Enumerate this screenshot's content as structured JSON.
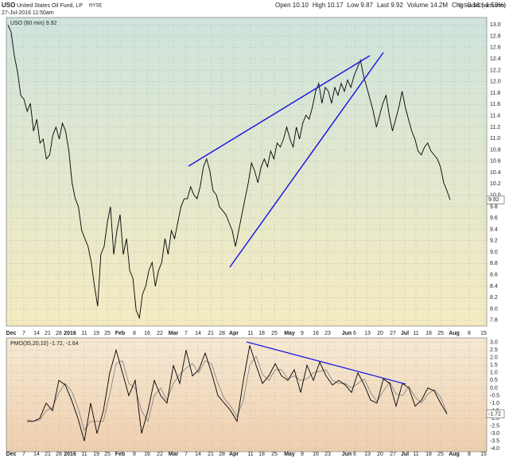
{
  "header": {
    "symbol": "USO",
    "name": "United States Oil Fund, LP",
    "exchange": "NYSE",
    "datetime": "27-Jul-2016 11:50am",
    "quote": [
      "Open 10.10",
      "High 10.17",
      "Low 9.87",
      "Last 9.92",
      "Volume 14.2M",
      "Chg -0.16 (-1.59%)"
    ],
    "source": "© StockCharts.com"
  },
  "chart_data": [
    {
      "type": "line",
      "legend": "USO (60 min) 9.92",
      "last_label": "9.92",
      "xtick_labels": [
        "Dec",
        "7",
        "14",
        "21",
        "28",
        "2016",
        "11",
        "19",
        "25",
        "Feb",
        "8",
        "16",
        "22",
        "Mar",
        "7",
        "14",
        "21",
        "28",
        "Apr",
        "11",
        "18",
        "25",
        "May",
        "9",
        "16",
        "23",
        "Jun",
        "6",
        "13",
        "20",
        "27",
        "Jul",
        "11",
        "18",
        "25",
        "Aug",
        "8",
        "15"
      ],
      "series": [
        {
          "name": "USO",
          "color": "#000000",
          "values": [
            13.0,
            12.87,
            12.45,
            12.17,
            11.76,
            11.69,
            11.48,
            11.62,
            11.13,
            11.34,
            10.92,
            10.99,
            10.64,
            10.71,
            11.06,
            11.2,
            10.99,
            11.27,
            11.13,
            10.78,
            10.22,
            9.94,
            9.8,
            9.38,
            9.24,
            9.1,
            8.82,
            8.4,
            8.05,
            8.96,
            9.1,
            9.52,
            9.8,
            8.96,
            9.38,
            9.66,
            8.96,
            9.24,
            8.68,
            8.54,
            7.98,
            7.84,
            8.26,
            8.4,
            8.68,
            8.82,
            8.4,
            8.68,
            8.82,
            9.24,
            8.96,
            9.38,
            9.24,
            9.52,
            9.8,
            9.94,
            9.94,
            10.15,
            10.01,
            9.94,
            10.15,
            10.5,
            10.64,
            10.43,
            10.08,
            10.01,
            9.8,
            9.73,
            9.66,
            9.52,
            9.38,
            9.1,
            9.38,
            9.66,
            9.94,
            10.22,
            10.57,
            10.43,
            10.22,
            10.5,
            10.64,
            10.5,
            10.78,
            10.64,
            10.92,
            10.85,
            10.99,
            11.2,
            10.99,
            10.85,
            11.2,
            10.99,
            11.27,
            11.41,
            11.34,
            11.55,
            11.83,
            11.97,
            11.62,
            11.9,
            11.83,
            11.62,
            11.9,
            11.76,
            11.97,
            11.83,
            12.03,
            11.9,
            12.1,
            12.24,
            12.38,
            12.1,
            11.9,
            11.69,
            11.48,
            11.2,
            11.41,
            11.62,
            11.76,
            11.41,
            11.13,
            11.34,
            11.55,
            11.83,
            11.55,
            11.34,
            11.13,
            10.99,
            10.78,
            10.71,
            10.85,
            10.92,
            10.78,
            10.71,
            10.64,
            10.5,
            10.22,
            10.08,
            9.92
          ]
        }
      ],
      "ylim": [
        7.7,
        13.13
      ],
      "yticks": [
        {
          "value": 7.8,
          "label": "7.8"
        },
        {
          "value": 8,
          "label": "8.0"
        },
        {
          "value": 8.2,
          "label": "8.2"
        },
        {
          "value": 8.4,
          "label": "8.4"
        },
        {
          "value": 8.6,
          "label": "8.6"
        },
        {
          "value": 8.8,
          "label": "8.8"
        },
        {
          "value": 9,
          "label": "9.0"
        },
        {
          "value": 9.2,
          "label": "9.2"
        },
        {
          "value": 9.4,
          "label": "9.4"
        },
        {
          "value": 9.6,
          "label": "9.6"
        },
        {
          "value": 9.8,
          "label": "9.8"
        },
        {
          "value": 10,
          "label": "10.0"
        },
        {
          "value": 10.2,
          "label": "10.2"
        },
        {
          "value": 10.4,
          "label": "10.4"
        },
        {
          "value": 10.6,
          "label": "10.6"
        },
        {
          "value": 10.8,
          "label": "10.8"
        },
        {
          "value": 11,
          "label": "11.0"
        },
        {
          "value": 11.2,
          "label": "11.2"
        },
        {
          "value": 11.4,
          "label": "11.4"
        },
        {
          "value": 11.6,
          "label": "11.6"
        },
        {
          "value": 11.8,
          "label": "11.8"
        },
        {
          "value": 12,
          "label": "12.0"
        },
        {
          "value": 12.2,
          "label": "12.2"
        },
        {
          "value": 12.4,
          "label": "12.4"
        },
        {
          "value": 12.6,
          "label": "12.6"
        },
        {
          "value": 12.8,
          "label": "12.8"
        },
        {
          "value": 13,
          "label": "13.0"
        }
      ],
      "grid": true
    },
    {
      "type": "line",
      "legend": "PMO(35,20,10) -1.72, -1.64",
      "last_label": "-1.72",
      "series": [
        {
          "name": "PMO",
          "color": "#000000",
          "values": [
            -2.2,
            -2.2,
            -2.0,
            -1.0,
            -1.5,
            0.5,
            0.2,
            -0.8,
            -2.0,
            -3.5,
            -1.0,
            -3.0,
            -1.5,
            1.0,
            2.5,
            1.0,
            -0.5,
            0.5,
            -3.0,
            -1.5,
            0.5,
            -0.5,
            -1.0,
            1.5,
            0.3,
            2.5,
            0.8,
            1.2,
            2.3,
            1.0,
            -0.5,
            -1.0,
            -1.5,
            -2.2,
            0.5,
            2.8,
            1.5,
            0.3,
            0.8,
            1.6,
            0.8,
            0.5,
            1.2,
            -0.3,
            1.5,
            0.5,
            1.7,
            0.8,
            0.2,
            0.5,
            0.2,
            -0.3,
            1.0,
            0.2,
            -0.8,
            -1.0,
            0.6,
            0.3,
            -1.2,
            0.3,
            0.0,
            -1.2,
            -0.8,
            0.0,
            -0.2,
            -1.0,
            -1.72
          ]
        },
        {
          "name": "Signal",
          "color": "#888888",
          "values": [
            -2.1,
            -2.2,
            -2.1,
            -1.5,
            -1.3,
            -0.3,
            0.3,
            -0.2,
            -1.3,
            -2.8,
            -2.2,
            -2.2,
            -2.2,
            -0.4,
            1.6,
            1.8,
            0.3,
            0.0,
            -1.5,
            -2.2,
            -0.5,
            0.0,
            -0.8,
            0.3,
            0.9,
            1.3,
            1.6,
            1.0,
            1.8,
            1.6,
            0.3,
            -0.7,
            -1.2,
            -1.9,
            -0.8,
            1.5,
            2.1,
            0.9,
            0.5,
            1.2,
            1.2,
            0.6,
            0.8,
            0.5,
            0.6,
            1.0,
            1.1,
            1.2,
            0.5,
            0.3,
            0.3,
            0.0,
            0.3,
            0.6,
            -0.3,
            -0.9,
            -0.2,
            0.4,
            -0.4,
            -0.5,
            0.1,
            -0.6,
            -1.0,
            -0.4,
            -0.1,
            -0.6,
            -1.64
          ]
        }
      ],
      "ylim": [
        -4.2,
        3.3
      ],
      "yticks": [
        {
          "value": 3,
          "label": "3.0"
        },
        {
          "value": 2.5,
          "label": "2.5"
        },
        {
          "value": 2,
          "label": "2.0"
        },
        {
          "value": 1.5,
          "label": "1.5"
        },
        {
          "value": 1,
          "label": "1.0"
        },
        {
          "value": 0.5,
          "label": "0.5"
        },
        {
          "value": 0,
          "label": "0.0"
        },
        {
          "value": -0.5,
          "label": "-0.5"
        },
        {
          "value": -1,
          "label": "-1.0"
        },
        {
          "value": -1.5,
          "label": "-1.5"
        },
        {
          "value": -2,
          "label": "-2.0"
        },
        {
          "value": -2.5,
          "label": "-2.5"
        },
        {
          "value": -3,
          "label": "-3.0"
        },
        {
          "value": -3.5,
          "label": "-3.5"
        },
        {
          "value": -4,
          "label": "-4.0"
        }
      ],
      "grid": true
    }
  ]
}
